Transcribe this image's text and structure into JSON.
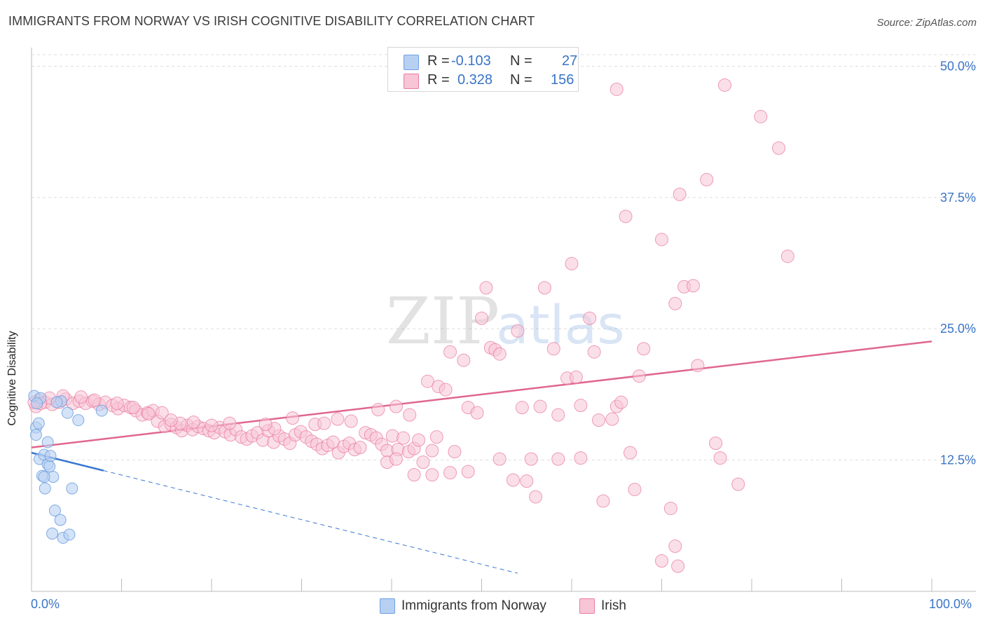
{
  "header": {
    "title": "IMMIGRANTS FROM NORWAY VS IRISH COGNITIVE DISABILITY CORRELATION CHART",
    "source": "Source: ZipAtlas.com"
  },
  "watermark": {
    "zip": "ZIP",
    "atlas": "atlas"
  },
  "colors": {
    "norway": "#6fa0e0",
    "norway_fill": "#b7d0f2",
    "irish": "#e87ea0",
    "irish_fill": "#f7c5d5",
    "axis_label": "#3a74c7",
    "grid": "#dddddd"
  },
  "legend_top": {
    "rows": [
      {
        "r_label": "R =",
        "r_value": "-0.103",
        "n_label": "N =",
        "n_value": "27"
      },
      {
        "r_label": "R =",
        "r_value": "0.328",
        "n_label": "N =",
        "n_value": "156"
      }
    ]
  },
  "legend_bottom": {
    "items": [
      {
        "label": "Immigrants from Norway"
      },
      {
        "label": "Irish"
      }
    ]
  },
  "chart_data": {
    "type": "scatter",
    "title": "IMMIGRANTS FROM NORWAY VS IRISH COGNITIVE DISABILITY CORRELATION CHART",
    "xlabel": "",
    "ylabel": "Cognitive Disability",
    "xlim": [
      0,
      100
    ],
    "ylim": [
      0,
      52.5
    ],
    "x_tick_labels": [
      "0.0%",
      "100.0%"
    ],
    "y_ticks": [
      12.5,
      25.0,
      37.5,
      50.0
    ],
    "y_tick_labels": [
      "12.5%",
      "25.0%",
      "37.5%",
      "50.0%"
    ],
    "grid": true,
    "legend_position": "top-center",
    "series": [
      {
        "name": "Immigrants from Norway",
        "r": -0.103,
        "n": 27,
        "trend": {
          "x": [
            0,
            8
          ],
          "y": [
            13.2,
            11.5
          ],
          "dashed_extension_to_x": 54
        },
        "points": [
          [
            0.3,
            18.6
          ],
          [
            0.5,
            15.6
          ],
          [
            0.8,
            16.0
          ],
          [
            0.5,
            14.9
          ],
          [
            0.9,
            12.6
          ],
          [
            1.2,
            11.0
          ],
          [
            1.4,
            13.0
          ],
          [
            1.5,
            9.8
          ],
          [
            1.8,
            14.2
          ],
          [
            1.8,
            12.1
          ],
          [
            2.0,
            11.9
          ],
          [
            2.1,
            12.9
          ],
          [
            2.4,
            10.9
          ],
          [
            2.6,
            7.7
          ],
          [
            3.2,
            6.8
          ],
          [
            2.3,
            5.5
          ],
          [
            3.5,
            5.1
          ],
          [
            4.2,
            5.4
          ],
          [
            4.5,
            9.8
          ],
          [
            3.3,
            18.1
          ],
          [
            4.0,
            17.0
          ],
          [
            5.2,
            16.3
          ],
          [
            7.8,
            17.2
          ],
          [
            1.0,
            18.4
          ],
          [
            1.4,
            10.9
          ],
          [
            2.8,
            18.0
          ],
          [
            0.6,
            17.9
          ]
        ]
      },
      {
        "name": "Irish",
        "r": 0.328,
        "n": 156,
        "trend": {
          "x": [
            0,
            100
          ],
          "y": [
            13.7,
            23.8
          ]
        },
        "points": [
          [
            0.8,
            18.2
          ],
          [
            1.5,
            18.0
          ],
          [
            2.3,
            17.8
          ],
          [
            3.1,
            18.0
          ],
          [
            3.8,
            18.3
          ],
          [
            4.6,
            17.9
          ],
          [
            5.3,
            18.1
          ],
          [
            6.0,
            17.9
          ],
          [
            6.8,
            18.1
          ],
          [
            7.5,
            17.8
          ],
          [
            8.2,
            18.0
          ],
          [
            9.0,
            17.7
          ],
          [
            9.6,
            17.4
          ],
          [
            10.3,
            17.7
          ],
          [
            11.0,
            17.5
          ],
          [
            11.6,
            17.2
          ],
          [
            12.3,
            16.8
          ],
          [
            12.9,
            17.0
          ],
          [
            13.5,
            17.2
          ],
          [
            14.0,
            16.2
          ],
          [
            14.8,
            15.7
          ],
          [
            15.5,
            15.9
          ],
          [
            16.1,
            15.6
          ],
          [
            16.7,
            15.3
          ],
          [
            17.3,
            15.8
          ],
          [
            17.9,
            15.4
          ],
          [
            18.5,
            15.7
          ],
          [
            19.1,
            15.5
          ],
          [
            19.7,
            15.3
          ],
          [
            20.3,
            15.1
          ],
          [
            20.9,
            15.6
          ],
          [
            21.5,
            15.2
          ],
          [
            22.1,
            14.9
          ],
          [
            22.7,
            15.4
          ],
          [
            23.3,
            14.7
          ],
          [
            23.9,
            14.5
          ],
          [
            24.5,
            14.8
          ],
          [
            25.1,
            15.1
          ],
          [
            25.7,
            14.4
          ],
          [
            26.3,
            15.3
          ],
          [
            26.9,
            14.2
          ],
          [
            27.5,
            14.8
          ],
          [
            28.1,
            14.5
          ],
          [
            28.7,
            14.1
          ],
          [
            29.3,
            14.9
          ],
          [
            29.9,
            15.2
          ],
          [
            30.5,
            14.7
          ],
          [
            31.1,
            14.3
          ],
          [
            31.7,
            14.0
          ],
          [
            32.3,
            13.6
          ],
          [
            32.9,
            13.9
          ],
          [
            33.5,
            14.2
          ],
          [
            34.1,
            13.2
          ],
          [
            34.7,
            13.8
          ],
          [
            35.3,
            14.1
          ],
          [
            35.9,
            13.5
          ],
          [
            36.5,
            13.7
          ],
          [
            37.1,
            15.1
          ],
          [
            37.7,
            14.9
          ],
          [
            38.3,
            14.6
          ],
          [
            38.9,
            14.0
          ],
          [
            39.5,
            13.4
          ],
          [
            40.1,
            14.8
          ],
          [
            40.7,
            13.5
          ],
          [
            41.3,
            14.6
          ],
          [
            41.9,
            13.3
          ],
          [
            42.5,
            13.6
          ],
          [
            43.0,
            14.4
          ],
          [
            0.5,
            17.6
          ],
          [
            14.5,
            17.0
          ],
          [
            27.0,
            15.5
          ],
          [
            31.5,
            15.9
          ],
          [
            34.0,
            16.4
          ],
          [
            38.5,
            17.3
          ],
          [
            40.5,
            17.6
          ],
          [
            42.0,
            16.8
          ],
          [
            44.0,
            20.0
          ],
          [
            45.2,
            19.5
          ],
          [
            46.0,
            19.2
          ],
          [
            46.5,
            22.8
          ],
          [
            48.0,
            22.0
          ],
          [
            48.5,
            17.5
          ],
          [
            49.5,
            17.0
          ],
          [
            50.0,
            26.0
          ],
          [
            50.5,
            28.9
          ],
          [
            51.0,
            23.2
          ],
          [
            51.5,
            23.0
          ],
          [
            52.0,
            22.6
          ],
          [
            54.0,
            24.8
          ],
          [
            54.5,
            17.5
          ],
          [
            56.5,
            17.6
          ],
          [
            57.0,
            28.9
          ],
          [
            58.0,
            23.1
          ],
          [
            58.5,
            16.8
          ],
          [
            59.5,
            20.3
          ],
          [
            60.0,
            31.2
          ],
          [
            60.5,
            20.4
          ],
          [
            61.0,
            17.7
          ],
          [
            62.0,
            26.0
          ],
          [
            62.5,
            22.8
          ],
          [
            63.0,
            16.3
          ],
          [
            64.5,
            16.4
          ],
          [
            65.0,
            17.6
          ],
          [
            65.5,
            18.0
          ],
          [
            66.0,
            35.7
          ],
          [
            66.5,
            13.2
          ],
          [
            67.5,
            20.5
          ],
          [
            68.0,
            23.1
          ],
          [
            70.0,
            33.5
          ],
          [
            71.5,
            27.4
          ],
          [
            72.0,
            37.8
          ],
          [
            72.5,
            29.0
          ],
          [
            73.5,
            29.1
          ],
          [
            74.0,
            21.5
          ],
          [
            76.0,
            14.1
          ],
          [
            76.5,
            12.7
          ],
          [
            78.5,
            10.2
          ],
          [
            63.5,
            8.6
          ],
          [
            67.0,
            9.7
          ],
          [
            71.0,
            7.9
          ],
          [
            71.5,
            4.3
          ],
          [
            70.0,
            2.9
          ],
          [
            71.8,
            2.4
          ],
          [
            75.0,
            39.2
          ],
          [
            77.0,
            48.2
          ],
          [
            81.0,
            45.2
          ],
          [
            83.0,
            42.2
          ],
          [
            84.0,
            31.9
          ],
          [
            65.0,
            47.8
          ],
          [
            52.0,
            12.6
          ],
          [
            53.5,
            10.6
          ],
          [
            55.0,
            10.5
          ],
          [
            55.5,
            12.6
          ],
          [
            56.0,
            9.0
          ],
          [
            58.5,
            12.6
          ],
          [
            61.0,
            12.7
          ],
          [
            46.5,
            11.3
          ],
          [
            48.5,
            11.4
          ],
          [
            44.5,
            13.4
          ],
          [
            47.0,
            13.3
          ],
          [
            45.0,
            14.7
          ],
          [
            43.5,
            12.3
          ],
          [
            44.5,
            11.1
          ],
          [
            42.5,
            11.1
          ],
          [
            39.5,
            12.3
          ],
          [
            40.5,
            12.6
          ],
          [
            35.5,
            16.2
          ],
          [
            32.5,
            16.0
          ],
          [
            29.0,
            16.5
          ],
          [
            26.0,
            15.9
          ],
          [
            22.0,
            16.0
          ],
          [
            20.0,
            15.8
          ],
          [
            18.0,
            16.1
          ],
          [
            16.5,
            16.0
          ],
          [
            15.5,
            16.3
          ],
          [
            13.0,
            16.9
          ],
          [
            11.3,
            17.5
          ],
          [
            9.5,
            17.9
          ],
          [
            7.0,
            18.2
          ],
          [
            5.5,
            18.5
          ],
          [
            3.5,
            18.6
          ],
          [
            2.0,
            18.4
          ],
          [
            1.0,
            17.9
          ],
          [
            0.3,
            18.0
          ]
        ]
      }
    ]
  }
}
